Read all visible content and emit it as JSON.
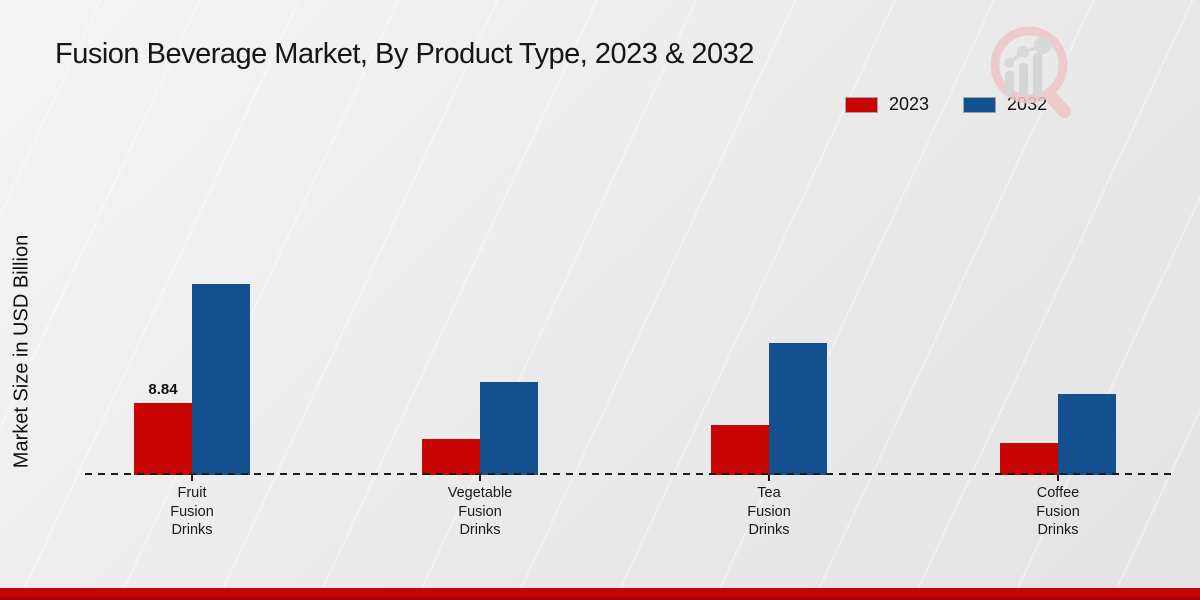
{
  "header": {
    "title": "Fusion Beverage Market, By Product Type, 2023 & 2032"
  },
  "chart_data": {
    "type": "bar",
    "categories": [
      "Fruit Fusion Drinks",
      "Vegetable Fusion Drinks",
      "Tea Fusion Drinks",
      "Coffee Fusion Drinks"
    ],
    "series": [
      {
        "name": "2023",
        "color": "#c80502",
        "values": [
          8.84,
          4.4,
          6.2,
          3.9
        ]
      },
      {
        "name": "2032",
        "color": "#14508f",
        "values": [
          23.6,
          11.5,
          16.3,
          10.0
        ]
      }
    ],
    "title": "Fusion Beverage Market, By Product Type, 2023 & 2032",
    "xlabel": "",
    "ylabel": "Market Size in USD Billion",
    "ylim": [
      0,
      25
    ],
    "grid": false,
    "legend_position": "top-right",
    "value_labels": [
      {
        "series_index": 0,
        "category_index": 0,
        "text": "8.84"
      }
    ],
    "baseline_style": "dashed"
  },
  "footer": {
    "accent_color": "#c50404"
  },
  "watermark": {
    "name": "magnifier-bar-chart-logo",
    "ring_color": "#eec6c9",
    "bars_color": "#d2d2d2"
  }
}
